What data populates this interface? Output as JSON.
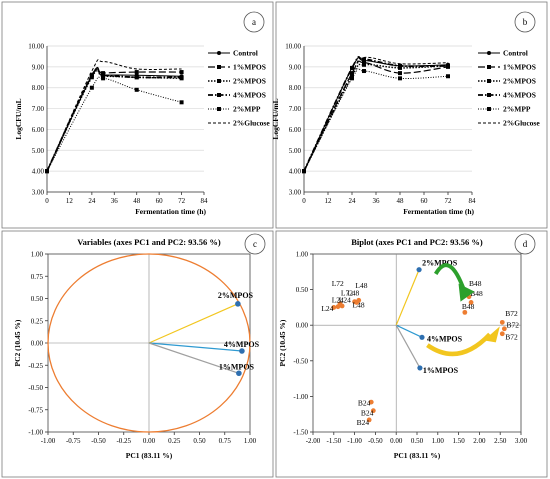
{
  "chart_data": [
    {
      "panel": "a",
      "type": "line",
      "title": "",
      "xlabel": "Fermentation time (h)",
      "ylabel": "LogCFU/mL",
      "xlim": [
        0,
        84
      ],
      "ylim": [
        3.0,
        10.0
      ],
      "xticks": [
        "0",
        "12",
        "24",
        "36",
        "48",
        "60",
        "72",
        "84"
      ],
      "yticks": [
        "3.00",
        "4.00",
        "5.00",
        "6.00",
        "7.00",
        "8.00",
        "9.00",
        "10.00"
      ],
      "x": [
        0,
        24,
        30,
        48,
        72
      ],
      "series": [
        {
          "name": "Control",
          "style": "solid-circle",
          "values": [
            4.0,
            8.55,
            8.6,
            8.6,
            8.55
          ]
        },
        {
          "name": "1%MPOS",
          "style": "longdash-square",
          "values": [
            4.0,
            8.6,
            8.7,
            8.75,
            8.75
          ]
        },
        {
          "name": "2%MPOS",
          "style": "dotted-square",
          "values": [
            4.0,
            8.5,
            8.55,
            8.5,
            8.45
          ]
        },
        {
          "name": "4%MPOS",
          "style": "dashdot-square",
          "values": [
            4.0,
            8.6,
            8.6,
            8.5,
            8.5
          ]
        },
        {
          "name": "2%MPP",
          "style": "fine-dotted-square",
          "values": [
            4.0,
            8.0,
            8.45,
            7.9,
            7.3
          ]
        },
        {
          "name": "2%Glucose",
          "style": "dashed-none",
          "values": [
            4.0,
            8.8,
            9.25,
            8.9,
            8.9
          ]
        }
      ]
    },
    {
      "panel": "b",
      "type": "line",
      "title": "",
      "xlabel": "Fermentation time (h)",
      "ylabel": "LogCFU/mL",
      "xlim": [
        0,
        84
      ],
      "ylim": [
        3.0,
        10.0
      ],
      "xticks": [
        "0",
        "12",
        "24",
        "36",
        "48",
        "60",
        "72",
        "84"
      ],
      "yticks": [
        "3.00",
        "4.00",
        "5.00",
        "6.00",
        "7.00",
        "8.00",
        "9.00",
        "10.00"
      ],
      "x": [
        0,
        24,
        30,
        48,
        72
      ],
      "series": [
        {
          "name": "Control",
          "style": "solid-circle",
          "values": [
            4.0,
            8.95,
            9.3,
            9.05,
            9.1
          ]
        },
        {
          "name": "1%MPOS",
          "style": "longdash-square",
          "values": [
            4.0,
            8.7,
            9.2,
            8.7,
            9.0
          ]
        },
        {
          "name": "2%MPOS",
          "style": "dotted-square",
          "values": [
            4.0,
            8.55,
            9.1,
            8.95,
            9.05
          ]
        },
        {
          "name": "4%MPOS",
          "style": "dashdot-square",
          "values": [
            4.0,
            8.95,
            9.35,
            9.05,
            9.05
          ]
        },
        {
          "name": "2%MPP",
          "style": "fine-dotted-square",
          "values": [
            4.0,
            8.45,
            8.8,
            8.45,
            8.55
          ]
        },
        {
          "name": "2%Glucose",
          "style": "dashed-none",
          "values": [
            4.0,
            8.7,
            9.45,
            9.15,
            9.2
          ]
        }
      ]
    },
    {
      "panel": "c",
      "type": "scatter",
      "title": "Variables (axes PC1 and PC2: 93.56 %)",
      "xlabel": "PC1 (83.11 %)",
      "ylabel": "PC2 (10.45 %)",
      "xlim": [
        -1.0,
        1.0
      ],
      "ylim": [
        -1.0,
        1.0
      ],
      "xticks": [
        "-1.00",
        "-0.75",
        "-0.50",
        "-0.25",
        "0.00",
        "0.25",
        "0.50",
        "0.75",
        "1.00"
      ],
      "yticks": [
        "1.00",
        "0.75",
        "0.50",
        "0.25",
        "0.00",
        "-0.25",
        "-0.50",
        "-0.75",
        "-1.00"
      ],
      "vectors": [
        {
          "name": "2%MPOS",
          "x": 0.88,
          "y": 0.44,
          "color": "#f2c61f"
        },
        {
          "name": "4%MPOS",
          "x": 0.92,
          "y": -0.09,
          "color": "#2e9ad1"
        },
        {
          "name": "1%MPOS",
          "x": 0.89,
          "y": -0.34,
          "color": "#a0a0a0"
        }
      ],
      "circle": "correlation circle, radius 1"
    },
    {
      "panel": "d",
      "type": "scatter",
      "title": "Biplot (axes PC1 and PC2: 93.56 %)",
      "xlabel": "PC1 (83.11 %)",
      "ylabel": "PC2 (10.45 %)",
      "xlim": [
        -2.0,
        3.0
      ],
      "ylim": [
        -1.5,
        1.0
      ],
      "xticks": [
        "-2.00",
        "-1.50",
        "-1.00",
        "-0.50",
        "0.00",
        "0.50",
        "1.00",
        "1.50",
        "2.00",
        "2.50",
        "3.00"
      ],
      "yticks": [
        "1.00",
        "0.50",
        "0.00",
        "-0.50",
        "-1.00",
        "-1.50"
      ],
      "vectors": [
        {
          "name": "2%MPOS",
          "x": 0.55,
          "y": 0.78,
          "color": "#f2c61f"
        },
        {
          "name": "4%MPOS",
          "x": 0.62,
          "y": -0.17,
          "color": "#2e9ad1"
        },
        {
          "name": "1%MPOS",
          "x": 0.57,
          "y": -0.6,
          "color": "#a0a0a0"
        }
      ],
      "observations": [
        {
          "label": "L24",
          "x": -1.5,
          "y": 0.25
        },
        {
          "label": "L24",
          "x": -1.4,
          "y": 0.26
        },
        {
          "label": "L72",
          "x": -1.35,
          "y": 0.3
        },
        {
          "label": "L72",
          "x": -1.3,
          "y": 0.27
        },
        {
          "label": "L48",
          "x": -1.0,
          "y": 0.33
        },
        {
          "label": "L48",
          "x": -0.9,
          "y": 0.35
        },
        {
          "label": "L48",
          "x": -0.95,
          "y": 0.32
        },
        {
          "label": "B48",
          "x": 1.65,
          "y": 0.18
        },
        {
          "label": "B48",
          "x": 1.75,
          "y": 0.4
        },
        {
          "label": "B48",
          "x": 1.8,
          "y": 0.32
        },
        {
          "label": "B72",
          "x": 2.55,
          "y": 0.04
        },
        {
          "label": "B72",
          "x": 2.6,
          "y": -0.05
        },
        {
          "label": "B72",
          "x": 2.55,
          "y": -0.12
        },
        {
          "label": "B24",
          "x": -0.6,
          "y": -1.08
        },
        {
          "label": "B24",
          "x": -0.55,
          "y": -1.2
        },
        {
          "label": "B24",
          "x": -0.65,
          "y": -1.33
        }
      ],
      "text_labels": [
        {
          "text": "L72",
          "x": -1.55,
          "y": 0.55
        },
        {
          "text": "L72",
          "x": -1.33,
          "y": 0.42
        },
        {
          "text": "L48",
          "x": -0.98,
          "y": 0.52
        },
        {
          "text": "L48",
          "x": -1.18,
          "y": 0.42
        },
        {
          "text": "L24",
          "x": -1.55,
          "y": 0.32
        },
        {
          "text": "L24",
          "x": -1.38,
          "y": 0.32
        },
        {
          "text": "L24",
          "x": -1.8,
          "y": 0.2
        },
        {
          "text": "L48",
          "x": -1.05,
          "y": 0.25
        },
        {
          "text": "B48",
          "x": 1.75,
          "y": 0.55
        },
        {
          "text": "B48",
          "x": 1.78,
          "y": 0.41
        },
        {
          "text": "B48",
          "x": 1.58,
          "y": 0.23
        },
        {
          "text": "B72",
          "x": 2.62,
          "y": 0.13
        },
        {
          "text": "B72",
          "x": 2.65,
          "y": -0.03
        },
        {
          "text": "B72",
          "x": 2.62,
          "y": -0.2
        },
        {
          "text": "B24",
          "x": -0.92,
          "y": -1.13
        },
        {
          "text": "B24",
          "x": -0.85,
          "y": -1.27
        },
        {
          "text": "B24",
          "x": -0.95,
          "y": -1.4
        }
      ],
      "arrows": [
        {
          "color": "#2ca02c",
          "from": "2%MPOS",
          "to": "B48"
        },
        {
          "color": "#f2c61f",
          "from": "4%MPOS",
          "to": "B72"
        }
      ]
    }
  ],
  "panel_letters": [
    "a",
    "b",
    "c",
    "d"
  ]
}
